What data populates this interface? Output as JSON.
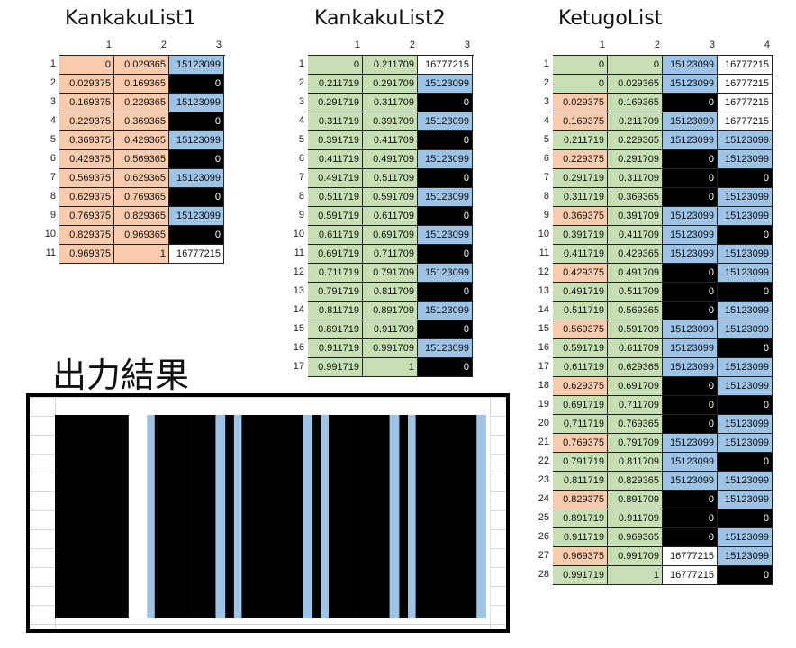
{
  "tables": [
    {
      "title": "KankakuList1",
      "col_headers": [
        "1",
        "2",
        "3"
      ],
      "rows": [
        [
          "0",
          "0.029365",
          "15123099"
        ],
        [
          "0.029375",
          "0.169365",
          "0"
        ],
        [
          "0.169375",
          "0.229365",
          "15123099"
        ],
        [
          "0.229375",
          "0.369365",
          "0"
        ],
        [
          "0.369375",
          "0.429365",
          "15123099"
        ],
        [
          "0.429375",
          "0.569365",
          "0"
        ],
        [
          "0.569375",
          "0.629365",
          "15123099"
        ],
        [
          "0.629375",
          "0.769365",
          "0"
        ],
        [
          "0.769375",
          "0.829365",
          "15123099"
        ],
        [
          "0.829375",
          "0.969365",
          "0"
        ],
        [
          "0.969375",
          "1",
          "16777215"
        ]
      ]
    },
    {
      "title": "KankakuList2",
      "col_headers": [
        "1",
        "2",
        "3"
      ],
      "rows": [
        [
          "0",
          "0.211709",
          "16777215"
        ],
        [
          "0.211719",
          "0.291709",
          "15123099"
        ],
        [
          "0.291719",
          "0.311709",
          "0"
        ],
        [
          "0.311719",
          "0.391709",
          "15123099"
        ],
        [
          "0.391719",
          "0.411709",
          "0"
        ],
        [
          "0.411719",
          "0.491709",
          "15123099"
        ],
        [
          "0.491719",
          "0.511709",
          "0"
        ],
        [
          "0.511719",
          "0.591709",
          "15123099"
        ],
        [
          "0.591719",
          "0.611709",
          "0"
        ],
        [
          "0.611719",
          "0.691709",
          "15123099"
        ],
        [
          "0.691719",
          "0.711709",
          "0"
        ],
        [
          "0.711719",
          "0.791709",
          "15123099"
        ],
        [
          "0.791719",
          "0.811709",
          "0"
        ],
        [
          "0.811719",
          "0.891709",
          "15123099"
        ],
        [
          "0.891719",
          "0.911709",
          "0"
        ],
        [
          "0.911719",
          "0.991709",
          "15123099"
        ],
        [
          "0.991719",
          "1",
          "0"
        ]
      ]
    },
    {
      "title": "KetugoList",
      "col_headers": [
        "1",
        "2",
        "3",
        "4"
      ],
      "rows": [
        [
          "0",
          "0",
          "15123099",
          "16777215"
        ],
        [
          "0",
          "0.029365",
          "15123099",
          "16777215"
        ],
        [
          "0.029375",
          "0.169365",
          "0",
          "16777215"
        ],
        [
          "0.169375",
          "0.211709",
          "15123099",
          "16777215"
        ],
        [
          "0.211719",
          "0.229365",
          "15123099",
          "15123099"
        ],
        [
          "0.229375",
          "0.291709",
          "0",
          "15123099"
        ],
        [
          "0.291719",
          "0.311709",
          "0",
          "0"
        ],
        [
          "0.311719",
          "0.369365",
          "0",
          "15123099"
        ],
        [
          "0.369375",
          "0.391709",
          "15123099",
          "15123099"
        ],
        [
          "0.391719",
          "0.411709",
          "15123099",
          "0"
        ],
        [
          "0.411719",
          "0.429365",
          "15123099",
          "15123099"
        ],
        [
          "0.429375",
          "0.491709",
          "0",
          "15123099"
        ],
        [
          "0.491719",
          "0.511709",
          "0",
          "0"
        ],
        [
          "0.511719",
          "0.569365",
          "0",
          "15123099"
        ],
        [
          "0.569375",
          "0.591709",
          "15123099",
          "15123099"
        ],
        [
          "0.591719",
          "0.611709",
          "15123099",
          "0"
        ],
        [
          "0.611719",
          "0.629365",
          "15123099",
          "15123099"
        ],
        [
          "0.629375",
          "0.691709",
          "0",
          "15123099"
        ],
        [
          "0.691719",
          "0.711709",
          "0",
          "0"
        ],
        [
          "0.711719",
          "0.769365",
          "0",
          "15123099"
        ],
        [
          "0.769375",
          "0.791709",
          "15123099",
          "15123099"
        ],
        [
          "0.791719",
          "0.811709",
          "15123099",
          "0"
        ],
        [
          "0.811719",
          "0.829365",
          "15123099",
          "15123099"
        ],
        [
          "0.829375",
          "0.891709",
          "0",
          "15123099"
        ],
        [
          "0.891719",
          "0.911709",
          "0",
          "0"
        ],
        [
          "0.911719",
          "0.969365",
          "0",
          "15123099"
        ],
        [
          "0.969375",
          "0.991709",
          "16777215",
          "15123099"
        ],
        [
          "0.991719",
          "1",
          "16777215",
          "0"
        ]
      ]
    }
  ],
  "output": {
    "label": "出力結果",
    "gridline_color": "#d9d9d9",
    "stripe_colors": {
      "black": "#000000",
      "blue": "#9dc3e6",
      "white": "#ffffff"
    },
    "stripes": [
      {
        "start": 0,
        "end": 0.029365,
        "color": "black"
      },
      {
        "start": 0.029375,
        "end": 0.169365,
        "color": "black"
      },
      {
        "start": 0.169375,
        "end": 0.211709,
        "color": "white"
      },
      {
        "start": 0.211719,
        "end": 0.229365,
        "color": "blue"
      },
      {
        "start": 0.229375,
        "end": 0.291709,
        "color": "black"
      },
      {
        "start": 0.291719,
        "end": 0.311709,
        "color": "black"
      },
      {
        "start": 0.311719,
        "end": 0.369365,
        "color": "black"
      },
      {
        "start": 0.369375,
        "end": 0.391709,
        "color": "blue"
      },
      {
        "start": 0.391719,
        "end": 0.411709,
        "color": "black"
      },
      {
        "start": 0.411719,
        "end": 0.429365,
        "color": "blue"
      },
      {
        "start": 0.429375,
        "end": 0.491709,
        "color": "black"
      },
      {
        "start": 0.491719,
        "end": 0.511709,
        "color": "black"
      },
      {
        "start": 0.511719,
        "end": 0.569365,
        "color": "black"
      },
      {
        "start": 0.569375,
        "end": 0.591709,
        "color": "blue"
      },
      {
        "start": 0.591719,
        "end": 0.611709,
        "color": "black"
      },
      {
        "start": 0.611719,
        "end": 0.629365,
        "color": "blue"
      },
      {
        "start": 0.629375,
        "end": 0.691709,
        "color": "black"
      },
      {
        "start": 0.691719,
        "end": 0.711709,
        "color": "black"
      },
      {
        "start": 0.711719,
        "end": 0.769365,
        "color": "black"
      },
      {
        "start": 0.769375,
        "end": 0.791709,
        "color": "blue"
      },
      {
        "start": 0.791719,
        "end": 0.811709,
        "color": "black"
      },
      {
        "start": 0.811719,
        "end": 0.829365,
        "color": "blue"
      },
      {
        "start": 0.829375,
        "end": 0.891709,
        "color": "black"
      },
      {
        "start": 0.891719,
        "end": 0.911709,
        "color": "black"
      },
      {
        "start": 0.911719,
        "end": 0.969365,
        "color": "black"
      },
      {
        "start": 0.969375,
        "end": 0.991709,
        "color": "blue"
      },
      {
        "start": 0.991719,
        "end": 1,
        "color": "white"
      }
    ]
  },
  "colors": {
    "salmon": "#f8cbad",
    "green": "#c6e0b4",
    "blue": "#9dc3e6",
    "black": "#000000",
    "white": "#ffffff"
  }
}
